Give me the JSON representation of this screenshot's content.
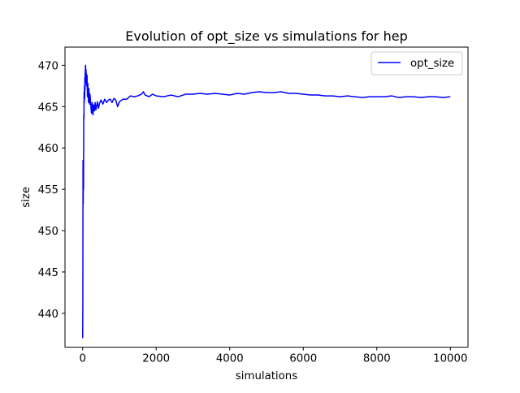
{
  "chart_data": {
    "type": "line",
    "title": "Evolution of opt_size vs simulations for hep",
    "xlabel": "simulations",
    "ylabel": "size",
    "xlim": [
      -480,
      10480
    ],
    "ylim": [
      435.9,
      472.2
    ],
    "xticks": [
      0,
      2000,
      4000,
      6000,
      8000,
      10000
    ],
    "yticks": [
      440,
      445,
      450,
      455,
      460,
      465,
      470
    ],
    "grid": false,
    "legend": {
      "placement": "top-right"
    },
    "series": [
      {
        "name": "opt_size",
        "color": "#0000ff",
        "x": [
          0,
          5,
          10,
          15,
          20,
          25,
          30,
          35,
          40,
          45,
          50,
          55,
          60,
          65,
          70,
          75,
          80,
          85,
          90,
          95,
          100,
          110,
          120,
          130,
          140,
          150,
          160,
          170,
          180,
          190,
          200,
          220,
          240,
          260,
          280,
          300,
          320,
          340,
          360,
          380,
          400,
          430,
          460,
          500,
          550,
          600,
          650,
          700,
          750,
          800,
          850,
          900,
          950,
          1000,
          1100,
          1200,
          1300,
          1400,
          1500,
          1600,
          1650,
          1700,
          1800,
          1900,
          2000,
          2200,
          2400,
          2600,
          2800,
          3000,
          3200,
          3400,
          3600,
          3800,
          4000,
          4200,
          4400,
          4600,
          4800,
          5000,
          5200,
          5400,
          5600,
          5800,
          6000,
          6200,
          6400,
          6600,
          6800,
          7000,
          7200,
          7400,
          7600,
          7800,
          8000,
          8200,
          8400,
          8600,
          8800,
          9000,
          9200,
          9400,
          9600,
          9800,
          10000
        ],
        "values": [
          437.0,
          441.0,
          458.5,
          453.2,
          457.0,
          455.0,
          464.0,
          463.5,
          466.8,
          465.5,
          467.5,
          466.0,
          468.5,
          467.0,
          469.2,
          469.8,
          470.0,
          468.5,
          469.5,
          467.8,
          469.0,
          467.5,
          468.8,
          466.2,
          467.8,
          466.5,
          465.5,
          467.2,
          466.0,
          465.3,
          466.5,
          465.3,
          464.2,
          465.5,
          464.0,
          465.2,
          464.5,
          465.5,
          464.6,
          465.0,
          465.6,
          464.8,
          465.4,
          465.8,
          465.3,
          465.9,
          465.5,
          465.8,
          465.9,
          465.5,
          466.0,
          465.8,
          465.0,
          465.6,
          465.9,
          465.9,
          466.3,
          466.2,
          466.3,
          466.5,
          466.8,
          466.4,
          466.2,
          466.5,
          466.3,
          466.2,
          466.4,
          466.2,
          466.5,
          466.5,
          466.6,
          466.5,
          466.6,
          466.5,
          466.4,
          466.6,
          466.5,
          466.7,
          466.8,
          466.7,
          466.7,
          466.8,
          466.6,
          466.6,
          466.5,
          466.4,
          466.4,
          466.3,
          466.3,
          466.2,
          466.3,
          466.2,
          466.1,
          466.2,
          466.2,
          466.2,
          466.3,
          466.1,
          466.2,
          466.2,
          466.1,
          466.2,
          466.2,
          466.1,
          466.2
        ]
      }
    ]
  }
}
